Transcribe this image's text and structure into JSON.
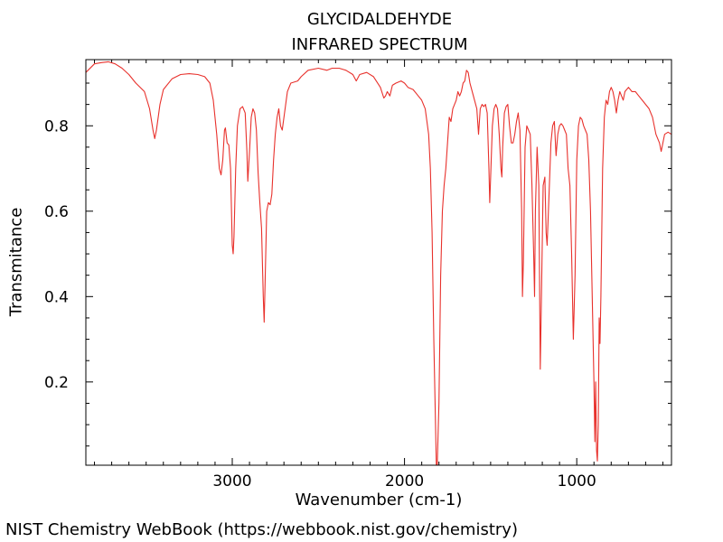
{
  "chart_data": {
    "type": "line",
    "title": [
      "GLYCIDALDEHYDE",
      "INFRARED SPECTRUM"
    ],
    "xlabel": "Wavenumber (cm-1)",
    "ylabel": "Transmitance",
    "xlim": [
      3850,
      450
    ],
    "ylim": [
      0.005,
      0.955
    ],
    "x_ticks": [
      {
        "value": 3000,
        "label": "3000"
      },
      {
        "value": 2000,
        "label": "2000"
      },
      {
        "value": 1000,
        "label": "1000"
      }
    ],
    "y_ticks": [
      {
        "value": 0.2,
        "label": "0.2"
      },
      {
        "value": 0.4,
        "label": "0.4"
      },
      {
        "value": 0.6,
        "label": "0.6"
      },
      {
        "value": 0.8,
        "label": "0.8"
      }
    ],
    "grid": false,
    "series": [
      {
        "color": "#e8312c",
        "points": [
          [
            3850,
            0.925
          ],
          [
            3800,
            0.945
          ],
          [
            3760,
            0.948
          ],
          [
            3720,
            0.95
          ],
          [
            3680,
            0.945
          ],
          [
            3640,
            0.935
          ],
          [
            3600,
            0.92
          ],
          [
            3560,
            0.9
          ],
          [
            3510,
            0.88
          ],
          [
            3480,
            0.84
          ],
          [
            3460,
            0.79
          ],
          [
            3450,
            0.77
          ],
          [
            3440,
            0.79
          ],
          [
            3420,
            0.85
          ],
          [
            3400,
            0.885
          ],
          [
            3350,
            0.91
          ],
          [
            3300,
            0.92
          ],
          [
            3250,
            0.922
          ],
          [
            3200,
            0.92
          ],
          [
            3160,
            0.915
          ],
          [
            3130,
            0.9
          ],
          [
            3110,
            0.86
          ],
          [
            3090,
            0.78
          ],
          [
            3075,
            0.7
          ],
          [
            3065,
            0.685
          ],
          [
            3055,
            0.72
          ],
          [
            3045,
            0.79
          ],
          [
            3040,
            0.795
          ],
          [
            3030,
            0.76
          ],
          [
            3020,
            0.755
          ],
          [
            3010,
            0.7
          ],
          [
            3000,
            0.52
          ],
          [
            2995,
            0.5
          ],
          [
            2990,
            0.54
          ],
          [
            2980,
            0.7
          ],
          [
            2970,
            0.8
          ],
          [
            2955,
            0.84
          ],
          [
            2940,
            0.845
          ],
          [
            2925,
            0.83
          ],
          [
            2915,
            0.74
          ],
          [
            2910,
            0.67
          ],
          [
            2900,
            0.74
          ],
          [
            2890,
            0.82
          ],
          [
            2880,
            0.84
          ],
          [
            2870,
            0.83
          ],
          [
            2860,
            0.79
          ],
          [
            2850,
            0.69
          ],
          [
            2840,
            0.62
          ],
          [
            2830,
            0.56
          ],
          [
            2820,
            0.4
          ],
          [
            2815,
            0.34
          ],
          [
            2810,
            0.42
          ],
          [
            2800,
            0.6
          ],
          [
            2790,
            0.62
          ],
          [
            2780,
            0.615
          ],
          [
            2770,
            0.64
          ],
          [
            2760,
            0.72
          ],
          [
            2750,
            0.78
          ],
          [
            2740,
            0.82
          ],
          [
            2730,
            0.84
          ],
          [
            2720,
            0.8
          ],
          [
            2710,
            0.79
          ],
          [
            2700,
            0.82
          ],
          [
            2680,
            0.88
          ],
          [
            2660,
            0.9
          ],
          [
            2620,
            0.905
          ],
          [
            2600,
            0.915
          ],
          [
            2560,
            0.93
          ],
          [
            2500,
            0.935
          ],
          [
            2450,
            0.93
          ],
          [
            2420,
            0.935
          ],
          [
            2380,
            0.935
          ],
          [
            2340,
            0.93
          ],
          [
            2300,
            0.92
          ],
          [
            2280,
            0.905
          ],
          [
            2260,
            0.92
          ],
          [
            2220,
            0.925
          ],
          [
            2180,
            0.915
          ],
          [
            2140,
            0.89
          ],
          [
            2120,
            0.865
          ],
          [
            2110,
            0.87
          ],
          [
            2100,
            0.88
          ],
          [
            2085,
            0.87
          ],
          [
            2070,
            0.895
          ],
          [
            2050,
            0.9
          ],
          [
            2020,
            0.905
          ],
          [
            2000,
            0.9
          ],
          [
            1980,
            0.89
          ],
          [
            1950,
            0.885
          ],
          [
            1920,
            0.87
          ],
          [
            1900,
            0.86
          ],
          [
            1880,
            0.84
          ],
          [
            1860,
            0.78
          ],
          [
            1850,
            0.7
          ],
          [
            1840,
            0.55
          ],
          [
            1830,
            0.3
          ],
          [
            1820,
            0.1
          ],
          [
            1815,
            0.005
          ],
          [
            1810,
            0.005
          ],
          [
            1800,
            0.15
          ],
          [
            1790,
            0.45
          ],
          [
            1780,
            0.6
          ],
          [
            1770,
            0.66
          ],
          [
            1760,
            0.7
          ],
          [
            1750,
            0.76
          ],
          [
            1740,
            0.82
          ],
          [
            1730,
            0.81
          ],
          [
            1720,
            0.84
          ],
          [
            1700,
            0.86
          ],
          [
            1690,
            0.88
          ],
          [
            1680,
            0.87
          ],
          [
            1670,
            0.88
          ],
          [
            1660,
            0.9
          ],
          [
            1650,
            0.905
          ],
          [
            1640,
            0.93
          ],
          [
            1630,
            0.925
          ],
          [
            1620,
            0.9
          ],
          [
            1600,
            0.87
          ],
          [
            1580,
            0.84
          ],
          [
            1570,
            0.78
          ],
          [
            1560,
            0.84
          ],
          [
            1550,
            0.85
          ],
          [
            1540,
            0.845
          ],
          [
            1530,
            0.85
          ],
          [
            1520,
            0.83
          ],
          [
            1510,
            0.7
          ],
          [
            1505,
            0.62
          ],
          [
            1500,
            0.68
          ],
          [
            1490,
            0.8
          ],
          [
            1480,
            0.84
          ],
          [
            1470,
            0.85
          ],
          [
            1460,
            0.84
          ],
          [
            1450,
            0.78
          ],
          [
            1440,
            0.7
          ],
          [
            1435,
            0.68
          ],
          [
            1430,
            0.75
          ],
          [
            1420,
            0.83
          ],
          [
            1410,
            0.845
          ],
          [
            1400,
            0.85
          ],
          [
            1390,
            0.8
          ],
          [
            1380,
            0.76
          ],
          [
            1370,
            0.76
          ],
          [
            1360,
            0.78
          ],
          [
            1350,
            0.81
          ],
          [
            1340,
            0.83
          ],
          [
            1330,
            0.79
          ],
          [
            1320,
            0.6
          ],
          [
            1315,
            0.4
          ],
          [
            1310,
            0.48
          ],
          [
            1300,
            0.75
          ],
          [
            1290,
            0.8
          ],
          [
            1280,
            0.79
          ],
          [
            1270,
            0.78
          ],
          [
            1260,
            0.66
          ],
          [
            1250,
            0.5
          ],
          [
            1245,
            0.4
          ],
          [
            1240,
            0.6
          ],
          [
            1230,
            0.75
          ],
          [
            1220,
            0.66
          ],
          [
            1212,
            0.23
          ],
          [
            1205,
            0.4
          ],
          [
            1195,
            0.66
          ],
          [
            1185,
            0.68
          ],
          [
            1178,
            0.55
          ],
          [
            1172,
            0.52
          ],
          [
            1160,
            0.65
          ],
          [
            1150,
            0.76
          ],
          [
            1140,
            0.8
          ],
          [
            1130,
            0.81
          ],
          [
            1120,
            0.73
          ],
          [
            1110,
            0.78
          ],
          [
            1100,
            0.8
          ],
          [
            1090,
            0.805
          ],
          [
            1080,
            0.8
          ],
          [
            1070,
            0.79
          ],
          [
            1060,
            0.78
          ],
          [
            1050,
            0.7
          ],
          [
            1040,
            0.66
          ],
          [
            1030,
            0.5
          ],
          [
            1020,
            0.3
          ],
          [
            1010,
            0.45
          ],
          [
            1000,
            0.72
          ],
          [
            990,
            0.8
          ],
          [
            980,
            0.82
          ],
          [
            970,
            0.815
          ],
          [
            960,
            0.8
          ],
          [
            950,
            0.79
          ],
          [
            940,
            0.78
          ],
          [
            930,
            0.72
          ],
          [
            920,
            0.6
          ],
          [
            910,
            0.4
          ],
          [
            900,
            0.2
          ],
          [
            895,
            0.06
          ],
          [
            890,
            0.2
          ],
          [
            885,
            0.04
          ],
          [
            880,
            0.015
          ],
          [
            875,
            0.1
          ],
          [
            870,
            0.35
          ],
          [
            865,
            0.29
          ],
          [
            860,
            0.4
          ],
          [
            850,
            0.7
          ],
          [
            840,
            0.82
          ],
          [
            830,
            0.86
          ],
          [
            820,
            0.85
          ],
          [
            810,
            0.88
          ],
          [
            800,
            0.89
          ],
          [
            790,
            0.88
          ],
          [
            780,
            0.86
          ],
          [
            770,
            0.83
          ],
          [
            760,
            0.86
          ],
          [
            750,
            0.88
          ],
          [
            740,
            0.87
          ],
          [
            730,
            0.86
          ],
          [
            720,
            0.88
          ],
          [
            700,
            0.89
          ],
          [
            680,
            0.88
          ],
          [
            660,
            0.88
          ],
          [
            640,
            0.87
          ],
          [
            620,
            0.86
          ],
          [
            600,
            0.85
          ],
          [
            580,
            0.84
          ],
          [
            560,
            0.82
          ],
          [
            540,
            0.78
          ],
          [
            520,
            0.76
          ],
          [
            510,
            0.74
          ],
          [
            500,
            0.76
          ],
          [
            490,
            0.78
          ],
          [
            470,
            0.785
          ],
          [
            450,
            0.78
          ]
        ]
      }
    ]
  },
  "footer": "NIST Chemistry WebBook (https://webbook.nist.gov/chemistry)"
}
